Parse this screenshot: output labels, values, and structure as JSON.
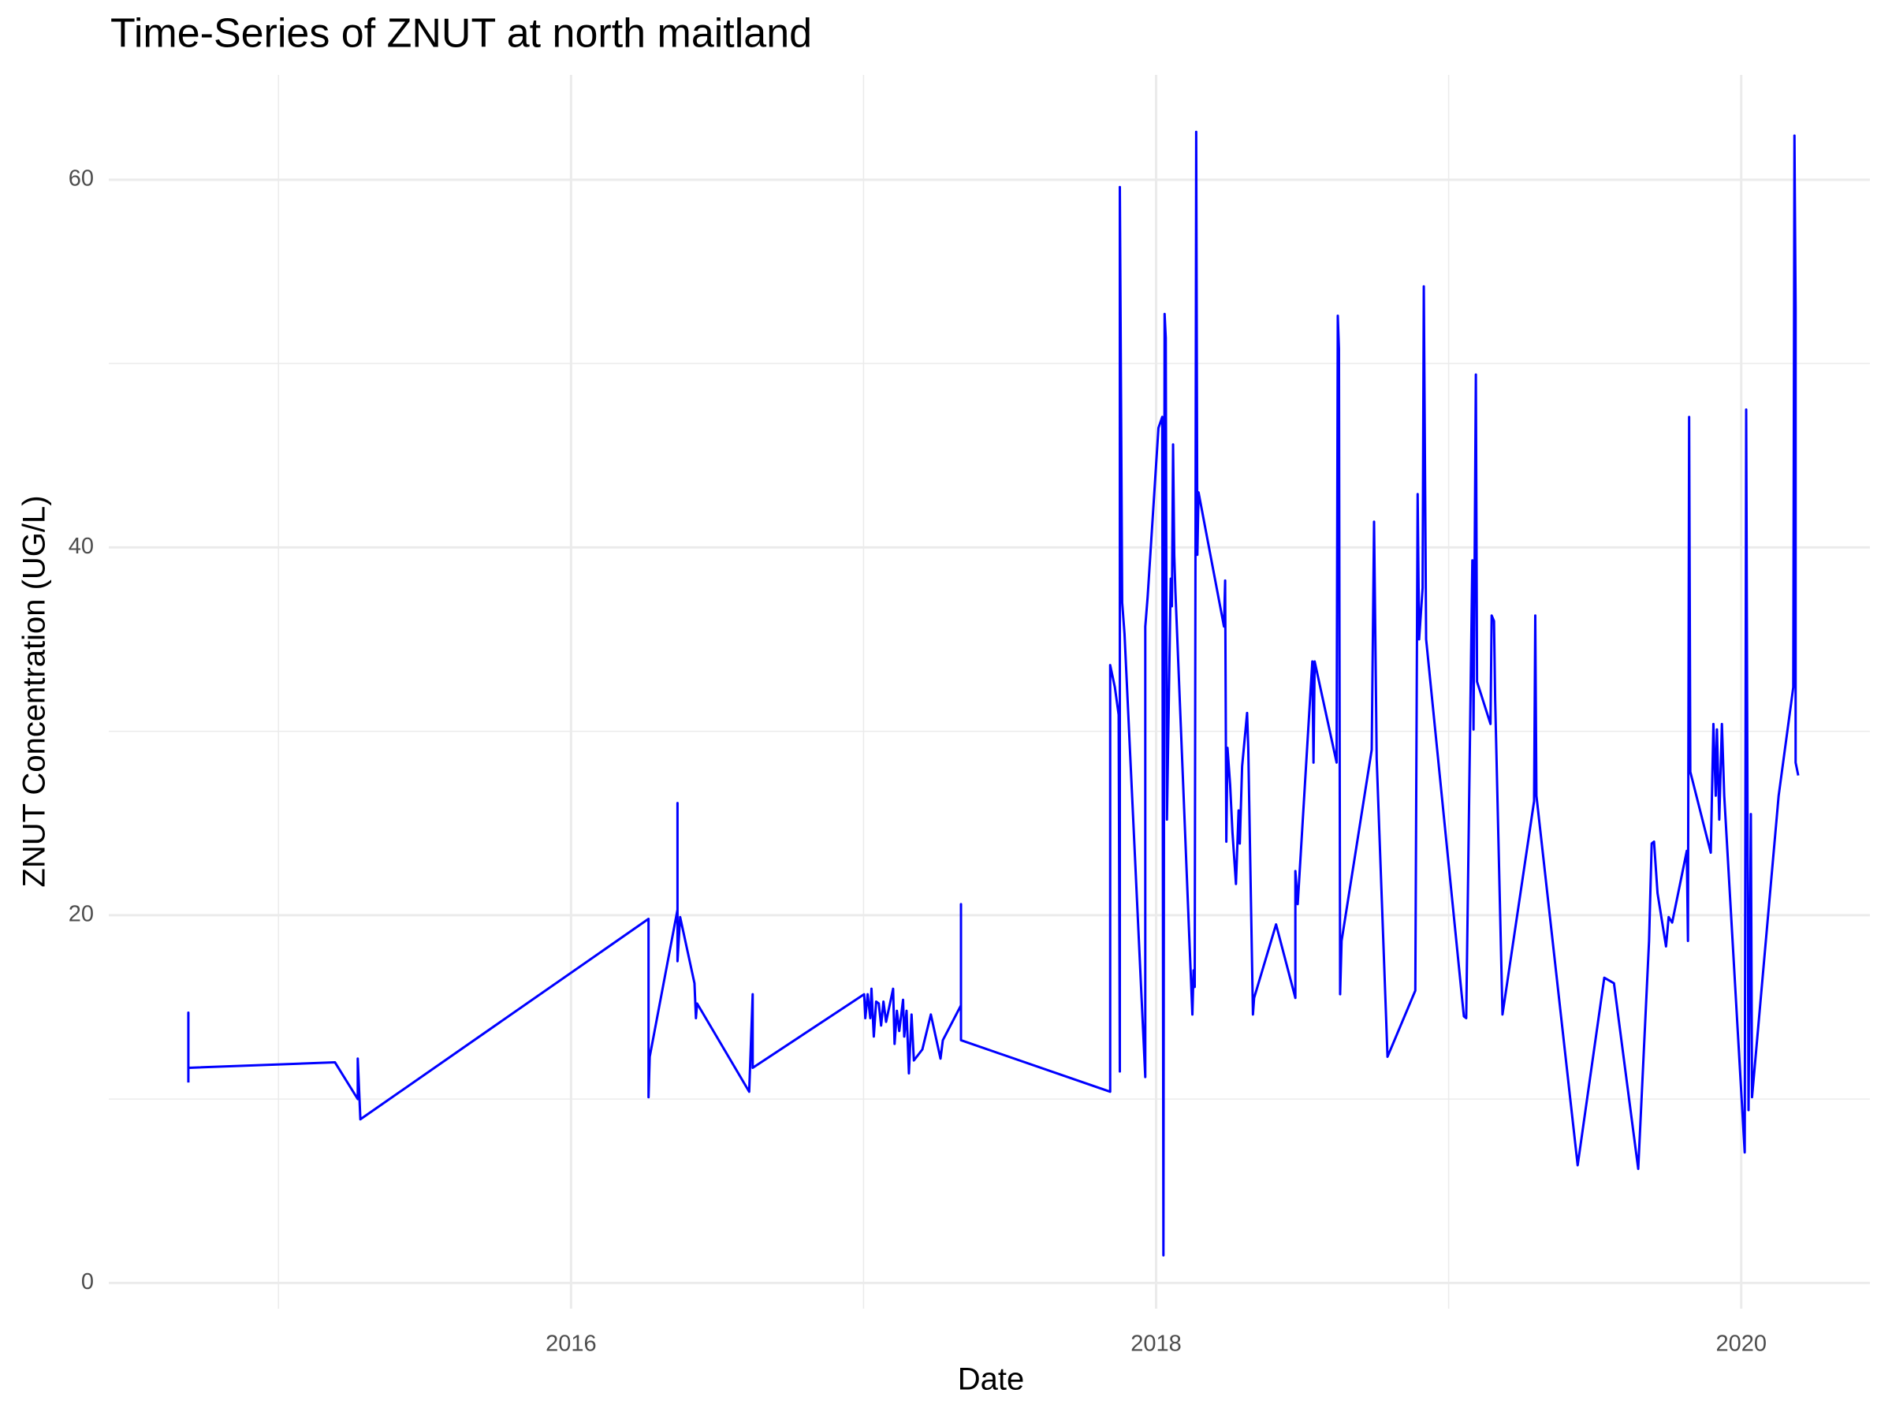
{
  "chart_data": {
    "type": "line",
    "title": "Time-Series of ZNUT at north maitland",
    "x_label": "Date",
    "y_label": "ZNUT Concentration (UG/L)",
    "color": "#0000ff",
    "grid": true,
    "xlim": [
      2014.42,
      2020.44
    ],
    "xticks": [
      2016,
      2018,
      2020
    ],
    "x_minor_grid": [
      2015,
      2017,
      2019
    ],
    "ylim": [
      -1.4,
      65.7
    ],
    "yticks": [
      0,
      20,
      40,
      60
    ],
    "y_minor_grid": [
      10,
      30,
      50
    ],
    "x": [
      2014.692,
      2014.692,
      2014.692,
      2015.193,
      2015.271,
      2015.271,
      2015.28,
      2016.265,
      2016.265,
      2016.269,
      2016.364,
      2016.364,
      2016.364,
      2016.373,
      2016.422,
      2016.427,
      2016.431,
      2016.609,
      2016.621,
      2016.621,
      2017.002,
      2017.006,
      2017.014,
      2017.023,
      2017.027,
      2017.035,
      2017.043,
      2017.052,
      2017.06,
      2017.068,
      2017.077,
      2017.101,
      2017.106,
      2017.114,
      2017.122,
      2017.135,
      2017.139,
      2017.147,
      2017.155,
      2017.164,
      2017.172,
      2017.201,
      2017.23,
      2017.263,
      2017.271,
      2017.333,
      2017.333,
      2017.333,
      2017.843,
      2017.843,
      2017.859,
      2017.872,
      2017.876,
      2017.876,
      2017.884,
      2017.892,
      2017.963,
      2017.963,
      2017.971,
      2018.008,
      2018.021,
      2018.025,
      2018.029,
      2018.033,
      2018.037,
      2018.05,
      2018.054,
      2018.058,
      2018.062,
      2018.066,
      2018.124,
      2018.128,
      2018.132,
      2018.137,
      2018.141,
      2018.145,
      2018.232,
      2018.236,
      2018.24,
      2018.244,
      2018.253,
      2018.261,
      2018.273,
      2018.282,
      2018.286,
      2018.294,
      2018.311,
      2018.315,
      2018.331,
      2018.335,
      2018.41,
      2018.476,
      2018.476,
      2018.484,
      2018.534,
      2018.538,
      2018.542,
      2018.617,
      2018.621,
      2018.625,
      2018.629,
      2018.634,
      2018.737,
      2018.745,
      2018.754,
      2018.791,
      2018.886,
      2018.894,
      2018.899,
      2018.911,
      2018.915,
      2018.923,
      2019.052,
      2019.06,
      2019.081,
      2019.085,
      2019.093,
      2019.097,
      2019.143,
      2019.147,
      2019.155,
      2019.159,
      2019.184,
      2019.292,
      2019.296,
      2019.3,
      2019.441,
      2019.532,
      2019.565,
      2019.648,
      2019.685,
      2019.694,
      2019.702,
      2019.714,
      2019.743,
      2019.752,
      2019.764,
      2019.814,
      2019.818,
      2019.822,
      2019.826,
      2019.896,
      2019.905,
      2019.913,
      2019.917,
      2019.925,
      2019.934,
      2019.942,
      2020.012,
      2020.017,
      2020.025,
      2020.033,
      2020.037,
      2020.128,
      2020.178,
      2020.182,
      2020.186,
      2020.186,
      2020.195
    ],
    "values": [
      10.9,
      14.7,
      11.7,
      12.0,
      10.0,
      12.2,
      8.9,
      19.8,
      10.1,
      12.3,
      20.3,
      26.1,
      17.5,
      19.9,
      16.3,
      14.4,
      15.2,
      10.4,
      15.7,
      11.7,
      15.7,
      14.4,
      15.7,
      14.4,
      16.0,
      13.4,
      15.3,
      15.2,
      14.0,
      15.3,
      14.2,
      16.0,
      13.0,
      14.8,
      13.7,
      15.4,
      13.4,
      14.8,
      11.4,
      14.6,
      12.1,
      12.7,
      14.6,
      12.2,
      13.2,
      15.1,
      20.6,
      13.2,
      10.4,
      33.6,
      32.4,
      30.9,
      11.5,
      59.6,
      37.0,
      35.3,
      11.2,
      35.7,
      37.3,
      46.5,
      47.1,
      1.5,
      52.7,
      51.4,
      25.2,
      38.3,
      36.8,
      45.6,
      39.6,
      37.6,
      14.6,
      17.0,
      16.1,
      62.6,
      39.6,
      43.0,
      35.7,
      38.2,
      24.0,
      29.1,
      27.1,
      24.5,
      21.7,
      25.7,
      23.9,
      28.1,
      31.0,
      29.1,
      14.6,
      15.5,
      19.5,
      15.5,
      22.4,
      20.6,
      33.8,
      28.3,
      33.8,
      28.3,
      52.6,
      50.8,
      15.7,
      18.6,
      29.0,
      41.4,
      28.5,
      12.3,
      15.9,
      42.9,
      35.0,
      37.8,
      54.2,
      35.0,
      14.5,
      14.4,
      39.3,
      30.1,
      49.4,
      32.7,
      30.4,
      36.3,
      36.0,
      31.7,
      14.6,
      26.2,
      36.3,
      26.5,
      6.4,
      16.6,
      16.3,
      6.2,
      18.6,
      23.9,
      24.0,
      21.2,
      18.3,
      19.9,
      19.6,
      23.5,
      18.6,
      47.1,
      27.8,
      23.4,
      30.4,
      26.5,
      30.1,
      25.2,
      30.4,
      26.5,
      7.1,
      47.5,
      9.4,
      25.5,
      10.1,
      26.5,
      32.4,
      62.4,
      53.0,
      28.3,
      27.6
    ]
  }
}
